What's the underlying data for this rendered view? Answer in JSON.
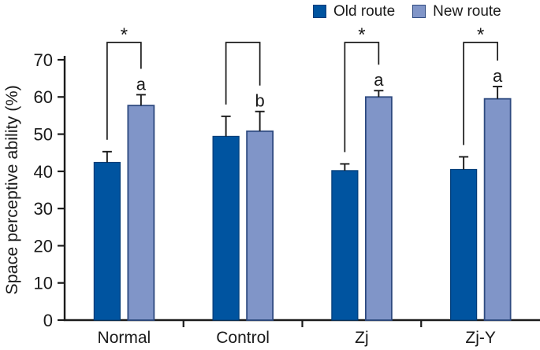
{
  "figure": {
    "background": "#ffffff",
    "axis_color": "#1a1a1a",
    "text_color": "#1a1a1a"
  },
  "chart_data": {
    "type": "bar",
    "title": "",
    "xlabel": "",
    "ylabel": "Space perceptive ability (%)",
    "ylim": [
      0,
      70
    ],
    "yticks": [
      0,
      10,
      20,
      30,
      40,
      50,
      60,
      70
    ],
    "grid": false,
    "error_bars": "upper",
    "legend_position": "top-right",
    "categories": [
      "Normal",
      "Control",
      "Zj",
      "Zj-Y"
    ],
    "series": [
      {
        "name": "Old route",
        "color": "#0054a0",
        "border": "#003c78",
        "values": [
          42.4,
          49.4,
          40.2,
          40.5
        ],
        "errors": [
          2.9,
          5.4,
          1.8,
          3.4
        ]
      },
      {
        "name": "New route",
        "color": "#8095c8",
        "border": "#2e4a80",
        "values": [
          57.7,
          50.8,
          60.0,
          59.5
        ],
        "errors": [
          2.9,
          5.3,
          1.7,
          3.3
        ]
      }
    ],
    "bar_letters": [
      "a",
      "b",
      "a",
      "a"
    ],
    "comparisons": [
      {
        "category": "Normal",
        "label": "*"
      },
      {
        "category": "Control",
        "label": ""
      },
      {
        "category": "Zj",
        "label": "*"
      },
      {
        "category": "Zj-Y",
        "label": "*"
      }
    ]
  }
}
